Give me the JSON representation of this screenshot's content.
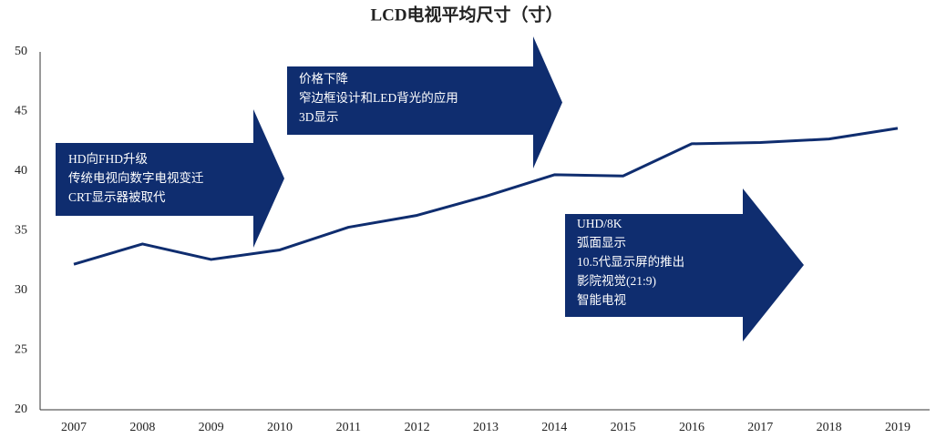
{
  "chart_data": {
    "type": "line",
    "title": "LCD电视平均尺寸（寸）",
    "categories": [
      "2007",
      "2008",
      "2009",
      "2010",
      "2011",
      "2012",
      "2013",
      "2014",
      "2015",
      "2016",
      "2017",
      "2018",
      "2019"
    ],
    "series": [
      {
        "color": "#0f2d6f",
        "values": [
          32.2,
          33.9,
          32.6,
          33.4,
          35.3,
          36.3,
          37.9,
          39.7,
          39.6,
          42.3,
          42.4,
          42.7,
          43.6
        ]
      }
    ],
    "ylim": [
      20,
      50
    ],
    "yticks": [
      20,
      25,
      30,
      35,
      40,
      45,
      50
    ],
    "grid": false,
    "annotations": [
      {
        "lines": [
          "HD向FHD升级",
          "传统电视向数字电视变迁",
          "CRT显示器被取代"
        ]
      },
      {
        "lines": [
          "价格下降",
          "窄边框设计和LED背光的应用",
          "3D显示"
        ]
      },
      {
        "lines": [
          "UHD/8K",
          "弧面显示",
          "10.5代显示屏的推出",
          "影院视觉(21:9)",
          "智能电视"
        ]
      }
    ]
  }
}
